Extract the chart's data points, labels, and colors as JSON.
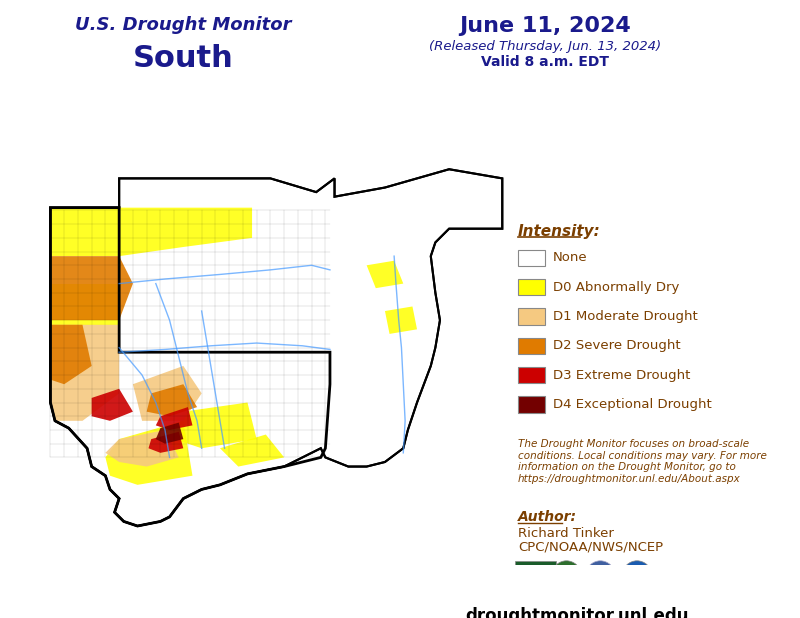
{
  "title_line1": "U.S. Drought Monitor",
  "title_line2": "South",
  "date_line1": "June 11, 2024",
  "date_line2": "(Released Thursday, Jun. 13, 2024)",
  "date_line3": "Valid 8 a.m. EDT",
  "intensity_label": "Intensity:",
  "legend_items": [
    {
      "color": "#FFFFFF",
      "label": "None"
    },
    {
      "color": "#FFFF00",
      "label": "D0 Abnormally Dry"
    },
    {
      "color": "#F5C981",
      "label": "D1 Moderate Drought"
    },
    {
      "color": "#E07B00",
      "label": "D2 Severe Drought"
    },
    {
      "color": "#CC0000",
      "label": "D3 Extreme Drought"
    },
    {
      "color": "#730000",
      "label": "D4 Exceptional Drought"
    }
  ],
  "disclaimer_text": "The Drought Monitor focuses on broad-scale\nconditions. Local conditions may vary. For more\ninformation on the Drought Monitor, go to\nhttps://droughtmonitor.unl.edu/About.aspx",
  "author_label": "Author:",
  "author_name": "Richard Tinker",
  "author_org": "CPC/NOAA/NWS/NCEP",
  "website": "droughtmonitor.unl.edu",
  "bg_color": "#FFFFFF",
  "title_color": "#1A1A8C",
  "legend_text_color": "#7B3F00",
  "disclaimer_color": "#7B3F00",
  "website_color": "#000000"
}
